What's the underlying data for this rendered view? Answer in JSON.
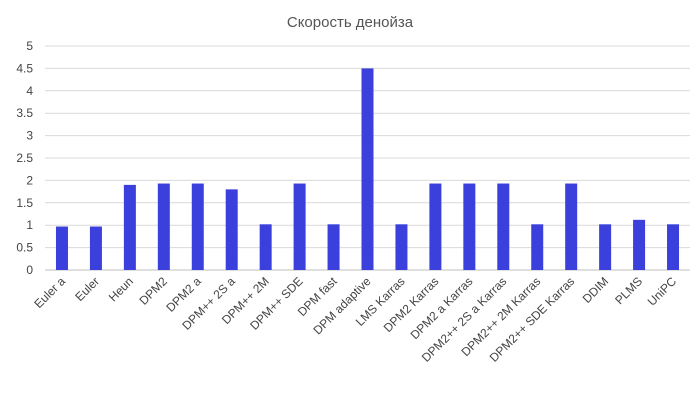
{
  "chart_data": {
    "type": "bar",
    "title": "Скорость денойза",
    "xlabel": "",
    "ylabel": "",
    "ylim": [
      0,
      5
    ],
    "yticks": [
      "0",
      "0.5",
      "1",
      "1.5",
      "2",
      "2.5",
      "3",
      "3.5",
      "4",
      "4.5",
      "5"
    ],
    "grid": true,
    "legend": "none",
    "bar_color": "#3b3fdc",
    "categories": [
      "Euler a",
      "Euler",
      "Heun",
      "DPM2",
      "DPM2 a",
      "DPM++ 2S a",
      "DPM++ 2M",
      "DPM++ SDE",
      "DPM fast",
      "DPM adaptive",
      "LMS Karras",
      "DPM2 Karras",
      "DPM2 a Karras",
      "DPM2++ 2S a Karras",
      "DPM2++ 2M Karras",
      "DPM2++ SDE Karras",
      "DDIM",
      "PLMS",
      "UniPC"
    ],
    "values": [
      0.97,
      0.97,
      1.9,
      1.93,
      1.93,
      1.8,
      1.02,
      1.93,
      1.02,
      4.5,
      1.02,
      1.93,
      1.93,
      1.93,
      1.02,
      1.93,
      1.02,
      1.12,
      1.02
    ]
  }
}
